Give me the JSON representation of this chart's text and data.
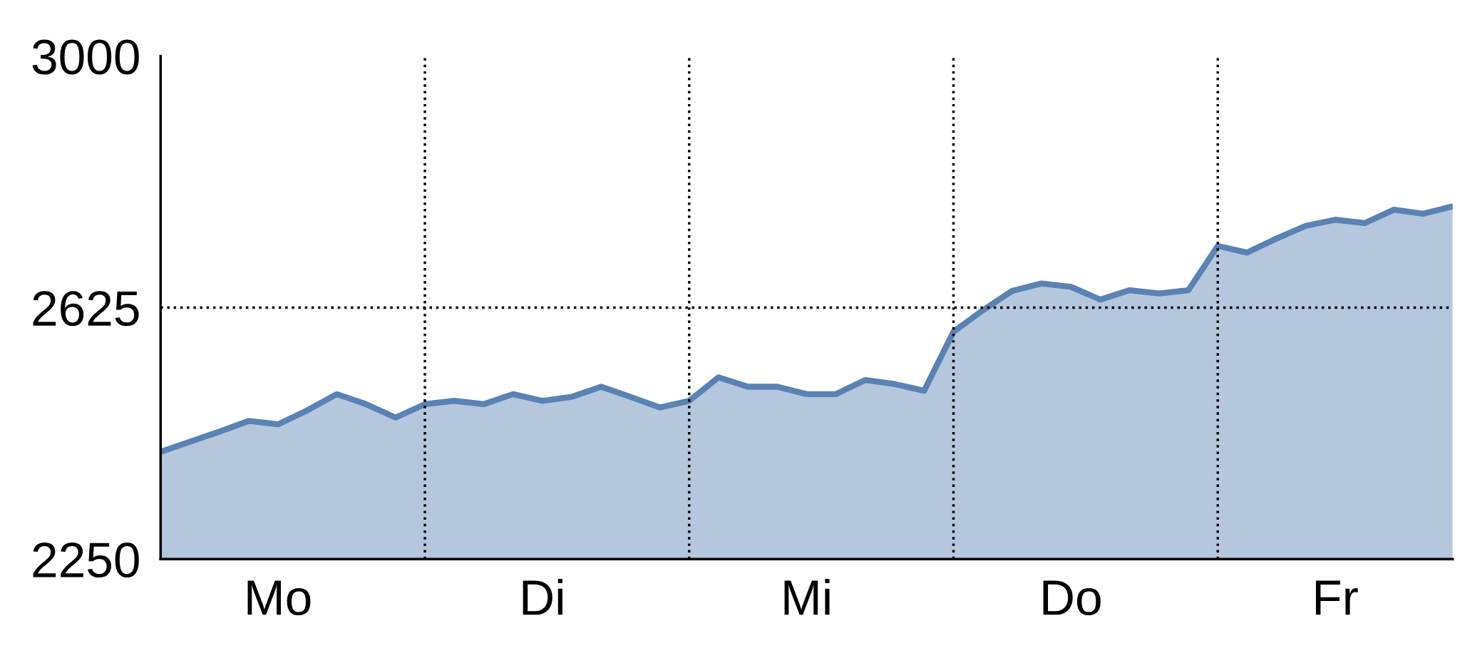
{
  "chart_data": {
    "type": "area",
    "categories": [
      null,
      null,
      null,
      null,
      "Mo",
      null,
      null,
      null,
      null,
      null,
      null,
      null,
      null,
      "Di",
      null,
      null,
      null,
      null,
      null,
      null,
      null,
      null,
      "Mi",
      null,
      null,
      null,
      null,
      null,
      null,
      null,
      null,
      "Do",
      null,
      null,
      null,
      null,
      null,
      null,
      null,
      null,
      "Fr",
      null,
      null,
      null,
      null
    ],
    "series": [
      {
        "color": "#5a82b4",
        "values": [
          2410,
          2425,
          2440,
          2456,
          2451,
          2472,
          2496,
          2481,
          2461,
          2481,
          2486,
          2481,
          2496,
          2486,
          2492,
          2507,
          2492,
          2476,
          2486,
          2521,
          2507,
          2507,
          2496,
          2496,
          2517,
          2511,
          2501,
          2589,
          2621,
          2650,
          2661,
          2656,
          2637,
          2651,
          2646,
          2651,
          2717,
          2707,
          2728,
          2747,
          2756,
          2751,
          2771,
          2765,
          2776
        ]
      }
    ],
    "ylim": [
      2250,
      3000
    ],
    "yticks": [
      2250,
      2625,
      3000
    ],
    "ref_lines": [
      {
        "axis": "y",
        "value": 2625,
        "color": "#000000",
        "line_style": "dotted"
      }
    ],
    "grid": "x",
    "legend": false
  }
}
